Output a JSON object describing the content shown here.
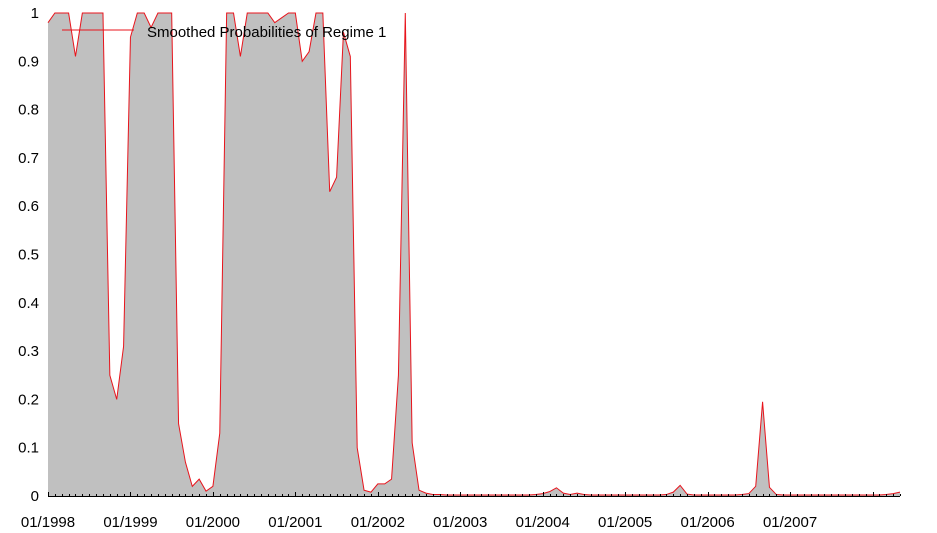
{
  "chart_data": {
    "type": "area",
    "title": "",
    "xlabel": "",
    "ylabel": "",
    "legend": {
      "position": "top-left",
      "entries": [
        "Smoothed Probabilities of Regime 1"
      ]
    },
    "grid": false,
    "ylim": [
      0,
      1
    ],
    "yticks": [
      "0",
      "0.1",
      "0.2",
      "0.3",
      "0.4",
      "0.5",
      "0.6",
      "0.7",
      "0.8",
      "0.9",
      "1"
    ],
    "xticks": [
      "01/1998",
      "01/1999",
      "01/2000",
      "01/2001",
      "01/2002",
      "01/2003",
      "01/2004",
      "01/2005",
      "01/2006",
      "01/2007"
    ],
    "x_start": "01/1998",
    "x_end": "01/2007",
    "frequency": "monthly",
    "colors": {
      "fill": "#c0c0c0",
      "line": "#e8141c"
    },
    "series": [
      {
        "name": "Smoothed Probabilities of Regime 1",
        "values": [
          0.98,
          1.0,
          1.0,
          1.0,
          0.91,
          1.0,
          1.0,
          1.0,
          1.0,
          0.25,
          0.2,
          0.31,
          0.95,
          1.0,
          1.0,
          0.97,
          1.0,
          1.0,
          1.0,
          0.15,
          0.07,
          0.02,
          0.035,
          0.01,
          0.02,
          0.13,
          1.0,
          1.0,
          0.91,
          1.0,
          1.0,
          1.0,
          1.0,
          0.98,
          0.99,
          1.0,
          1.0,
          0.9,
          0.92,
          1.0,
          1.0,
          0.63,
          0.66,
          0.96,
          0.91,
          0.1,
          0.012,
          0.008,
          0.025,
          0.025,
          0.035,
          0.25,
          1.0,
          0.11,
          0.012,
          0.006,
          0.003,
          0.003,
          0.002,
          0.002,
          0.002,
          0.002,
          0.002,
          0.002,
          0.002,
          0.002,
          0.002,
          0.002,
          0.002,
          0.002,
          0.002,
          0.003,
          0.005,
          0.009,
          0.017,
          0.006,
          0.003,
          0.006,
          0.003,
          0.002,
          0.002,
          0.002,
          0.002,
          0.002,
          0.002,
          0.002,
          0.002,
          0.002,
          0.002,
          0.002,
          0.003,
          0.008,
          0.022,
          0.004,
          0.002,
          0.002,
          0.002,
          0.002,
          0.002,
          0.002,
          0.002,
          0.003,
          0.005,
          0.02,
          0.195,
          0.018,
          0.003,
          0.002,
          0.002,
          0.002,
          0.002,
          0.002,
          0.002,
          0.002,
          0.002,
          0.002,
          0.002,
          0.002,
          0.002,
          0.002,
          0.002,
          0.002,
          0.003,
          0.005,
          0.008
        ]
      }
    ]
  }
}
